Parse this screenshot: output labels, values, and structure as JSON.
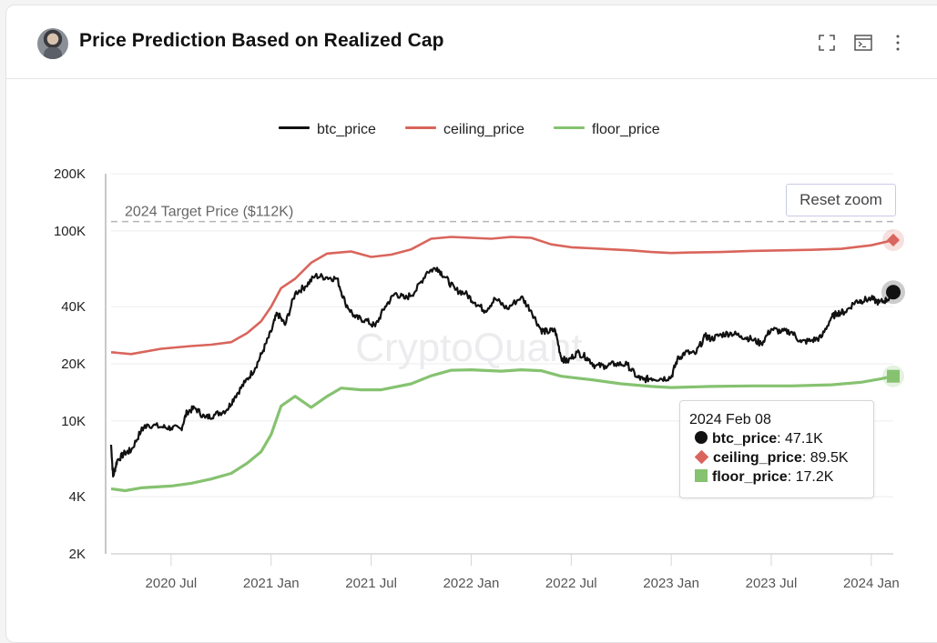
{
  "header": {
    "title": "Price Prediction Based on Realized Cap",
    "icons": [
      "expand-icon",
      "terminal-icon",
      "more-vertical-icon"
    ]
  },
  "reset_zoom_label": "Reset zoom",
  "watermark": "CryptoQuant",
  "tooltip": {
    "date": "2024 Feb 08",
    "rows": [
      {
        "name": "btc_price",
        "value": "47.1K",
        "marker": "circle"
      },
      {
        "name": "ceiling_price",
        "value": "89.5K",
        "marker": "diamond"
      },
      {
        "name": "floor_price",
        "value": "17.2K",
        "marker": "square"
      }
    ]
  },
  "chart_data": {
    "type": "line",
    "title": "Price Prediction Based on Realized Cap",
    "xlabel": "",
    "ylabel": "",
    "yscale": "log",
    "ylim": [
      2000,
      200000
    ],
    "y_ticks": [
      2000,
      4000,
      10000,
      20000,
      40000,
      100000,
      200000
    ],
    "y_tick_labels": [
      "2K",
      "4K",
      "10K",
      "20K",
      "40K",
      "100K",
      "200K"
    ],
    "x_ticks": [
      2020.5,
      2021.0,
      2021.5,
      2022.0,
      2022.5,
      2023.0,
      2023.5,
      2024.0
    ],
    "x_tick_labels": [
      "2020 Jul",
      "2021 Jan",
      "2021 Jul",
      "2022 Jan",
      "2022 Jul",
      "2023 Jan",
      "2023 Jul",
      "2024 Jan"
    ],
    "xlim": [
      2020.2,
      2024.11
    ],
    "grid": true,
    "legend_position": "top",
    "colors": {
      "btc_price": "#111111",
      "ceiling_price": "#d9655c",
      "floor_price": "#86c270"
    },
    "annotation": {
      "label": "2024 Target Price ($112K)",
      "value": 112000,
      "style": "dashed"
    },
    "series": [
      {
        "name": "btc_price",
        "x": [
          2020.2,
          2020.21,
          2020.23,
          2020.27,
          2020.3,
          2020.35,
          2020.38,
          2020.45,
          2020.5,
          2020.55,
          2020.58,
          2020.62,
          2020.67,
          2020.72,
          2020.78,
          2020.82,
          2020.87,
          2020.92,
          2020.96,
          2021.0,
          2021.03,
          2021.07,
          2021.12,
          2021.17,
          2021.22,
          2021.28,
          2021.33,
          2021.37,
          2021.42,
          2021.47,
          2021.52,
          2021.57,
          2021.62,
          2021.67,
          2021.72,
          2021.78,
          2021.83,
          2021.87,
          2021.92,
          2021.97,
          2022.02,
          2022.07,
          2022.12,
          2022.18,
          2022.25,
          2022.3,
          2022.35,
          2022.38,
          2022.42,
          2022.45,
          2022.48,
          2022.53,
          2022.58,
          2022.62,
          2022.67,
          2022.72,
          2022.78,
          2022.83,
          2022.86,
          2022.9,
          2022.95,
          2023.0,
          2023.03,
          2023.07,
          2023.12,
          2023.17,
          2023.2,
          2023.25,
          2023.3,
          2023.35,
          2023.4,
          2023.45,
          2023.5,
          2023.55,
          2023.6,
          2023.65,
          2023.7,
          2023.75,
          2023.8,
          2023.83,
          2023.87,
          2023.92,
          2023.95,
          2024.0,
          2024.04,
          2024.08,
          2024.11
        ],
        "values": [
          7500,
          5100,
          6200,
          6800,
          7000,
          8900,
          9600,
          9300,
          9200,
          9100,
          11200,
          11700,
          10400,
          10800,
          11500,
          13500,
          16000,
          19000,
          23500,
          29500,
          37000,
          32000,
          47000,
          51000,
          58000,
          57000,
          56000,
          42000,
          35000,
          34000,
          31500,
          40000,
          47000,
          44000,
          48000,
          61000,
          64000,
          57000,
          49000,
          47000,
          42000,
          38000,
          44000,
          39000,
          45000,
          38000,
          30000,
          29500,
          30000,
          21500,
          20500,
          23000,
          21500,
          19500,
          19500,
          20000,
          19800,
          17000,
          16500,
          16800,
          16700,
          17000,
          21000,
          23000,
          22500,
          28000,
          27000,
          28500,
          29000,
          28000,
          27000,
          25500,
          30500,
          29500,
          29500,
          26000,
          26500,
          27500,
          35000,
          37000,
          37500,
          42500,
          43000,
          44000,
          42000,
          43500,
          47100
        ]
      },
      {
        "name": "ceiling_price",
        "x": [
          2020.2,
          2020.3,
          2020.45,
          2020.6,
          2020.7,
          2020.8,
          2020.88,
          2020.95,
          2021.0,
          2021.05,
          2021.12,
          2021.2,
          2021.28,
          2021.4,
          2021.5,
          2021.6,
          2021.7,
          2021.8,
          2021.9,
          2022.0,
          2022.1,
          2022.2,
          2022.3,
          2022.4,
          2022.5,
          2022.6,
          2022.7,
          2022.8,
          2022.9,
          2023.0,
          2023.1,
          2023.25,
          2023.4,
          2023.55,
          2023.7,
          2023.85,
          2024.0,
          2024.11
        ],
        "values": [
          23000,
          22500,
          24000,
          24800,
          25200,
          26000,
          29000,
          33500,
          40000,
          50000,
          56000,
          68000,
          76000,
          78000,
          73000,
          75000,
          80000,
          91000,
          93000,
          92000,
          91000,
          93000,
          92000,
          85000,
          82000,
          81000,
          80000,
          79000,
          77500,
          76500,
          77000,
          77500,
          78500,
          79000,
          79500,
          80500,
          84000,
          89500
        ]
      },
      {
        "name": "floor_price",
        "x": [
          2020.2,
          2020.27,
          2020.35,
          2020.5,
          2020.6,
          2020.7,
          2020.8,
          2020.88,
          2020.95,
          2021.0,
          2021.05,
          2021.12,
          2021.2,
          2021.28,
          2021.35,
          2021.45,
          2021.55,
          2021.7,
          2021.8,
          2021.9,
          2022.0,
          2022.15,
          2022.25,
          2022.35,
          2022.45,
          2022.6,
          2022.75,
          2022.9,
          2023.0,
          2023.2,
          2023.4,
          2023.6,
          2023.8,
          2023.95,
          2024.05,
          2024.11
        ],
        "values": [
          4400,
          4300,
          4450,
          4550,
          4700,
          4950,
          5300,
          6000,
          6900,
          8500,
          12000,
          13500,
          11800,
          13500,
          14900,
          14600,
          14600,
          15700,
          17300,
          18500,
          18600,
          18300,
          18600,
          18400,
          17200,
          16500,
          15700,
          15200,
          15000,
          15200,
          15300,
          15300,
          15500,
          16000,
          16700,
          17200
        ]
      }
    ]
  }
}
